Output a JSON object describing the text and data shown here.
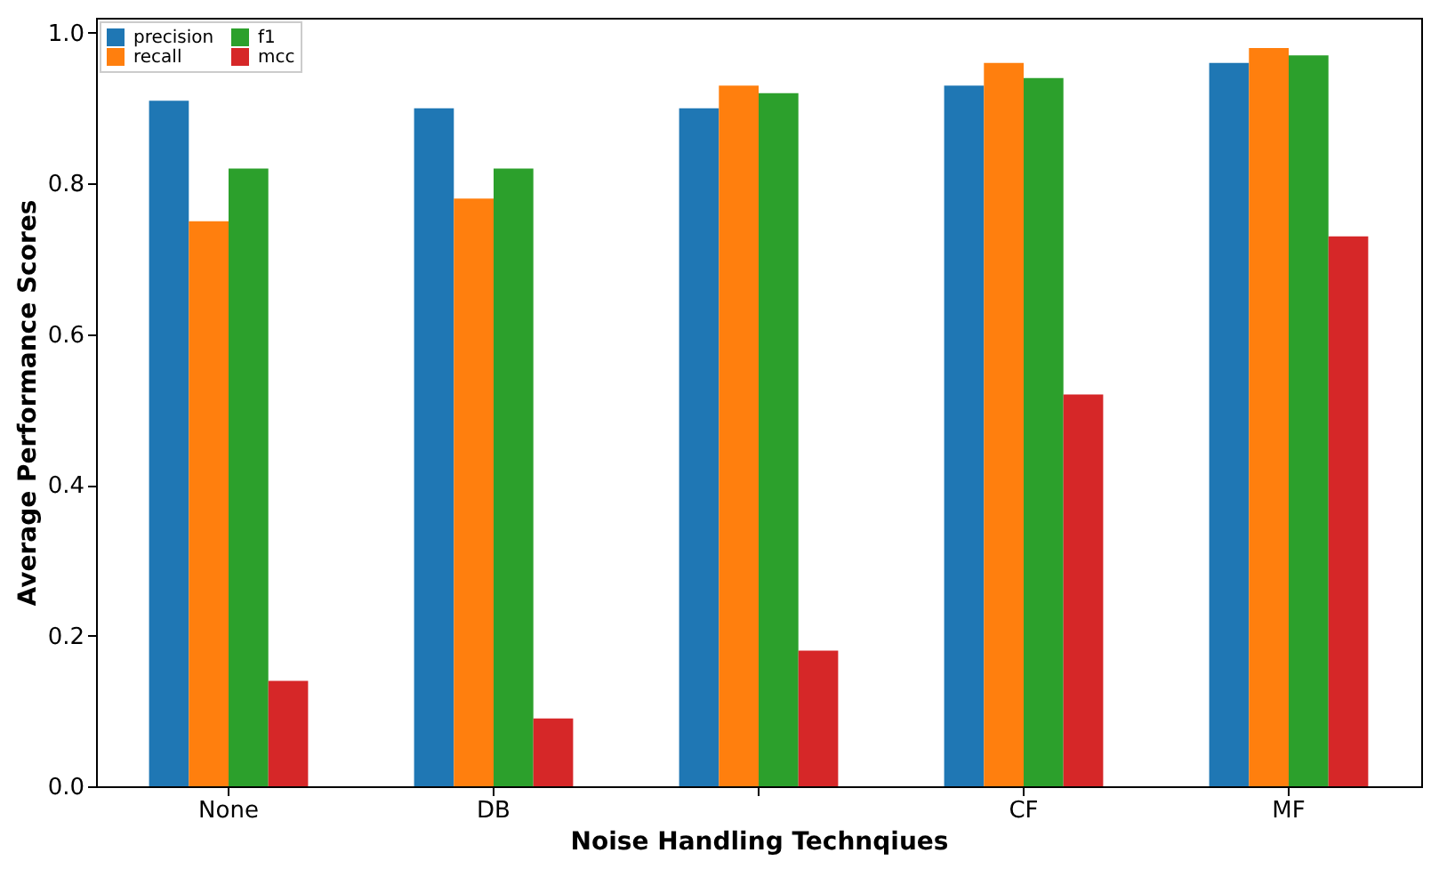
{
  "chart_data": {
    "type": "bar",
    "xlabel": "Noise Handling Technqiues",
    "ylabel": "Average Performance Scores",
    "categories": [
      "None",
      "DB",
      null,
      "CF",
      "MF"
    ],
    "series": [
      {
        "name": "precision",
        "color": "#1f77b4",
        "values": [
          0.91,
          0.9,
          0.9,
          0.93,
          0.96
        ]
      },
      {
        "name": "recall",
        "color": "#ff7f0e",
        "values": [
          0.75,
          0.78,
          0.93,
          0.96,
          0.98
        ]
      },
      {
        "name": "f1",
        "color": "#2ca02c",
        "values": [
          0.82,
          0.82,
          0.92,
          0.94,
          0.97
        ]
      },
      {
        "name": "mcc",
        "color": "#d62728",
        "values": [
          0.14,
          0.09,
          0.18,
          0.52,
          0.73
        ]
      }
    ],
    "ylim": [
      0,
      1.02
    ],
    "yticks": [
      {
        "value": 0,
        "label": "0.0"
      },
      {
        "value": 0.2,
        "label": "0.2"
      },
      {
        "value": 0.4,
        "label": "0.4"
      },
      {
        "value": 0.6,
        "label": "0.6"
      },
      {
        "value": 0.8,
        "label": "0.8"
      },
      {
        "value": 1,
        "label": "1.0"
      }
    ],
    "grid": false,
    "legend": "top left"
  }
}
